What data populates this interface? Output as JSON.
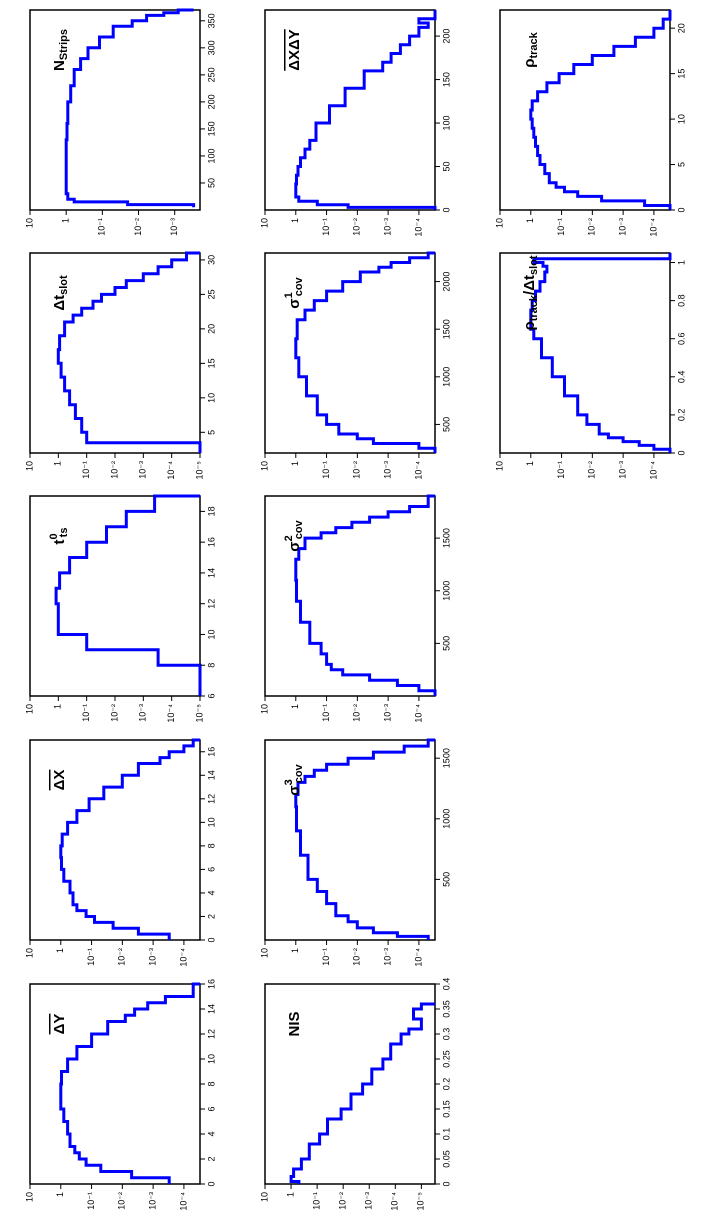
{
  "chart_data": [
    {
      "id": "p1",
      "type": "histogram",
      "label": {
        "main": "N",
        "sub": "Strips"
      },
      "xlim": [
        0,
        370
      ],
      "ylog": true,
      "ylim": [
        0.0002,
        10
      ],
      "xticks": [
        "50",
        "100",
        "150",
        "200",
        "250",
        "300",
        "350"
      ],
      "yticks": [
        "10",
        "1",
        "10⁻¹",
        "10⁻²",
        "10⁻³"
      ],
      "series": {
        "x": [
          5,
          10,
          15,
          20,
          30,
          40,
          50,
          70,
          100,
          130,
          160,
          200,
          230,
          260,
          280,
          300,
          320,
          340,
          350,
          360,
          365,
          370
        ],
        "y": [
          0.0003,
          0.02,
          0.6,
          0.9,
          1.0,
          1.0,
          1.0,
          1.0,
          1.0,
          0.95,
          0.9,
          0.75,
          0.6,
          0.4,
          0.25,
          0.12,
          0.05,
          0.015,
          0.006,
          0.002,
          0.0008,
          0.0003
        ]
      }
    },
    {
      "id": "p2",
      "type": "histogram",
      "label": {
        "main": "Δt",
        "sub": "slot"
      },
      "xlim": [
        2,
        31
      ],
      "ylog": true,
      "ylim": [
        1e-05,
        10
      ],
      "xticks": [
        "5",
        "10",
        "15",
        "20",
        "25",
        "30"
      ],
      "yticks": [
        "10",
        "1",
        "10⁻¹",
        "10⁻²",
        "10⁻³",
        "10⁻⁴",
        "10⁻⁵"
      ],
      "series": {
        "x": [
          2,
          3,
          3.5,
          5,
          7,
          9,
          11,
          13,
          15,
          17,
          19,
          21,
          22,
          23,
          24,
          25,
          26,
          27,
          28,
          29,
          30,
          31
        ],
        "y": [
          1e-05,
          1e-05,
          0.1,
          0.15,
          0.25,
          0.4,
          0.6,
          0.8,
          1.0,
          0.9,
          0.6,
          0.3,
          0.15,
          0.06,
          0.03,
          0.01,
          0.004,
          0.001,
          0.0003,
          0.0001,
          3e-05,
          1e-05
        ]
      }
    },
    {
      "id": "p3",
      "type": "histogram",
      "label": {
        "main": "t",
        "sup": "0",
        "sub": "ts"
      },
      "xlim": [
        6,
        19
      ],
      "ylog": true,
      "ylim": [
        1e-05,
        10
      ],
      "xticks": [
        "6",
        "8",
        "10",
        "12",
        "14",
        "16",
        "18"
      ],
      "yticks": [
        "10",
        "1",
        "10⁻¹",
        "10⁻²",
        "10⁻³",
        "10⁻⁴",
        "10⁻⁵"
      ],
      "series": {
        "x": [
          6,
          7,
          8,
          9,
          10,
          11,
          12,
          13,
          14,
          15,
          16,
          17,
          18,
          19
        ],
        "y": [
          1e-05,
          1e-05,
          0.0003,
          0.1,
          1.0,
          1.0,
          1.2,
          0.9,
          0.4,
          0.1,
          0.02,
          0.004,
          0.0004,
          1e-05
        ]
      }
    },
    {
      "id": "p4",
      "type": "histogram",
      "label": {
        "main": "ΔX",
        "overline": true
      },
      "xlim": [
        0,
        17
      ],
      "ylog": true,
      "ylim": [
        3e-05,
        10
      ],
      "xticks": [
        "0",
        "2",
        "4",
        "6",
        "8",
        "10",
        "12",
        "14",
        "16"
      ],
      "yticks": [
        "10",
        "1",
        "10⁻¹",
        "10⁻²",
        "10⁻³",
        "10⁻⁴"
      ],
      "series": {
        "x": [
          0,
          0.5,
          1,
          1.5,
          2,
          2.5,
          3,
          4,
          5,
          6,
          7,
          8,
          9,
          10,
          11,
          12,
          13,
          14,
          15,
          15.5,
          16,
          16.5,
          17
        ],
        "y": [
          0.0003,
          0.003,
          0.02,
          0.08,
          0.15,
          0.3,
          0.4,
          0.5,
          0.8,
          0.95,
          1.0,
          0.9,
          0.6,
          0.3,
          0.12,
          0.04,
          0.01,
          0.003,
          0.0006,
          0.0003,
          0.0001,
          5e-05,
          3e-05
        ]
      }
    },
    {
      "id": "p5",
      "type": "histogram",
      "label": {
        "main": "ΔY",
        "overline": true
      },
      "xlim": [
        0,
        16
      ],
      "ylog": true,
      "ylim": [
        3e-05,
        10
      ],
      "xticks": [
        "0",
        "2",
        "4",
        "6",
        "8",
        "10",
        "12",
        "14",
        "16"
      ],
      "yticks": [
        "10",
        "1",
        "10⁻¹",
        "10⁻²",
        "10⁻³",
        "10⁻⁴"
      ],
      "series": {
        "x": [
          0,
          0.5,
          1,
          1.5,
          2,
          2.5,
          3,
          4,
          5,
          6,
          7,
          8,
          9,
          10,
          11,
          12,
          13,
          13.5,
          14,
          14.5,
          15,
          16
        ],
        "y": [
          0.0003,
          0.005,
          0.05,
          0.15,
          0.25,
          0.35,
          0.5,
          0.6,
          0.8,
          1.0,
          1.0,
          0.95,
          0.6,
          0.3,
          0.1,
          0.03,
          0.008,
          0.004,
          0.0015,
          0.0004,
          5e-05,
          3e-05
        ]
      }
    },
    {
      "id": "p6",
      "type": "histogram",
      "label": {
        "main": "ΔXΔY",
        "overline": true
      },
      "xlim": [
        0,
        230
      ],
      "ylog": true,
      "ylim": [
        3e-05,
        10
      ],
      "xticks": [
        "0",
        "50",
        "100",
        "150",
        "200"
      ],
      "yticks": [
        "10",
        "1",
        "10⁻¹",
        "10⁻²",
        "10⁻³",
        "10⁻⁴"
      ],
      "series": {
        "x": [
          0,
          3,
          6,
          10,
          15,
          20,
          30,
          40,
          50,
          60,
          70,
          80,
          100,
          120,
          140,
          160,
          170,
          180,
          190,
          200,
          210,
          215,
          220,
          230
        ],
        "y": [
          3e-05,
          0.02,
          0.2,
          0.8,
          1.0,
          1.0,
          0.95,
          0.85,
          0.7,
          0.5,
          0.35,
          0.22,
          0.08,
          0.025,
          0.006,
          0.0015,
          0.0008,
          0.0004,
          0.0002,
          0.0001,
          5e-05,
          0.0001,
          3e-05,
          3e-05
        ]
      }
    },
    {
      "id": "p7",
      "type": "histogram",
      "label": {
        "main": "σ",
        "sup": "1",
        "sub": "cov"
      },
      "xlim": [
        200,
        2300
      ],
      "ylog": true,
      "ylim": [
        3e-05,
        10
      ],
      "xticks": [
        "500",
        "1000",
        "1500",
        "2000"
      ],
      "yticks": [
        "10",
        "1",
        "10⁻¹",
        "10⁻²",
        "10⁻³",
        "10⁻⁴"
      ],
      "series": {
        "x": [
          200,
          250,
          300,
          350,
          400,
          500,
          600,
          800,
          1000,
          1200,
          1400,
          1600,
          1700,
          1800,
          1900,
          2000,
          2100,
          2150,
          2200,
          2250,
          2300
        ],
        "y": [
          3e-05,
          0.0001,
          0.003,
          0.01,
          0.04,
          0.1,
          0.2,
          0.45,
          0.8,
          1.0,
          0.9,
          0.5,
          0.25,
          0.1,
          0.03,
          0.008,
          0.002,
          0.0008,
          0.0002,
          5e-05,
          3e-05
        ]
      }
    },
    {
      "id": "p8",
      "type": "histogram",
      "label": {
        "main": "σ",
        "sup": "2",
        "sub": "cov"
      },
      "xlim": [
        0,
        1900
      ],
      "ylog": true,
      "ylim": [
        3e-05,
        10
      ],
      "xticks": [
        "500",
        "1000",
        "1500"
      ],
      "yticks": [
        "10",
        "1",
        "10⁻¹",
        "10⁻²",
        "10⁻³",
        "10⁻⁴"
      ],
      "series": {
        "x": [
          0,
          50,
          100,
          150,
          200,
          250,
          300,
          400,
          500,
          700,
          900,
          1100,
          1300,
          1400,
          1500,
          1550,
          1600,
          1650,
          1700,
          1750,
          1800,
          1900
        ],
        "y": [
          3e-05,
          0.0001,
          0.0005,
          0.004,
          0.03,
          0.07,
          0.1,
          0.15,
          0.35,
          0.7,
          0.95,
          1.0,
          0.8,
          0.5,
          0.15,
          0.05,
          0.015,
          0.004,
          0.001,
          0.0002,
          5e-05,
          3e-05
        ]
      }
    },
    {
      "id": "p9",
      "type": "histogram",
      "label": {
        "main": "σ",
        "sup": "3",
        "sub": "cov"
      },
      "xlim": [
        0,
        1650
      ],
      "ylog": true,
      "ylim": [
        3e-05,
        10
      ],
      "xticks": [
        "500",
        "1000",
        "1500"
      ],
      "yticks": [
        "10",
        "1",
        "10⁻¹",
        "10⁻²",
        "10⁻³",
        "10⁻⁴"
      ],
      "series": {
        "x": [
          0,
          30,
          60,
          100,
          150,
          200,
          300,
          400,
          500,
          700,
          900,
          1100,
          1200,
          1300,
          1350,
          1400,
          1450,
          1500,
          1550,
          1600,
          1650
        ],
        "y": [
          5e-05,
          0.0005,
          0.003,
          0.01,
          0.02,
          0.05,
          0.1,
          0.2,
          0.4,
          0.7,
          0.95,
          1.0,
          0.85,
          0.5,
          0.25,
          0.1,
          0.02,
          0.003,
          0.0003,
          5e-05,
          3e-05
        ]
      }
    },
    {
      "id": "p10",
      "type": "histogram",
      "label": {
        "main": "NIS"
      },
      "xlim": [
        0,
        0.4
      ],
      "ylog": true,
      "ylim": [
        3e-06,
        10
      ],
      "xticks": [
        "0",
        "0.05",
        "0.1",
        "0.15",
        "0.2",
        "0.25",
        "0.3",
        "0.35",
        "0.4"
      ],
      "yticks": [
        "10",
        "1",
        "10⁻¹",
        "10⁻²",
        "10⁻³",
        "10⁻⁴",
        "10⁻⁵"
      ],
      "series": {
        "x": [
          0,
          0.005,
          0.015,
          0.03,
          0.05,
          0.08,
          0.1,
          0.13,
          0.15,
          0.18,
          0.2,
          0.23,
          0.25,
          0.28,
          0.3,
          0.31,
          0.33,
          0.35,
          0.36
        ],
        "y": [
          0.5,
          1.0,
          0.8,
          0.4,
          0.2,
          0.08,
          0.04,
          0.012,
          0.005,
          0.0018,
          0.0008,
          0.0003,
          0.00015,
          6e-05,
          3e-05,
          1e-05,
          2e-05,
          1e-05,
          3e-06
        ]
      }
    },
    {
      "id": "p11",
      "type": "histogram",
      "label": {
        "main": "ρ",
        "sub": "track"
      },
      "xlim": [
        0,
        22
      ],
      "ylog": true,
      "ylim": [
        3e-05,
        10
      ],
      "xticks": [
        "0",
        "5",
        "10",
        "15",
        "20"
      ],
      "yticks": [
        "10",
        "1",
        "10⁻¹",
        "10⁻²",
        "10⁻³",
        "10⁻⁴"
      ],
      "series": {
        "x": [
          0,
          0.5,
          1,
          1.5,
          2,
          2.5,
          3,
          4,
          5,
          6,
          7,
          8,
          9,
          10,
          11,
          12,
          13,
          14,
          15,
          16,
          17,
          18,
          19,
          20,
          21,
          22
        ],
        "y": [
          3e-05,
          0.0002,
          0.005,
          0.03,
          0.08,
          0.15,
          0.25,
          0.35,
          0.5,
          0.6,
          0.7,
          0.8,
          0.9,
          1.0,
          0.9,
          0.6,
          0.3,
          0.12,
          0.04,
          0.01,
          0.002,
          0.0004,
          0.0001,
          5e-05,
          3e-05,
          3e-05
        ]
      }
    },
    {
      "id": "p12",
      "type": "histogram",
      "label": {
        "main": "ρ",
        "sub": "track",
        "tail": "/Δt",
        "sub2": "slot"
      },
      "xlim": [
        0,
        1.05
      ],
      "ylog": true,
      "ylim": [
        3e-05,
        10
      ],
      "xticks": [
        "0",
        "0.2",
        "0.4",
        "0.6",
        "0.8",
        "1"
      ],
      "yticks": [
        "10",
        "1",
        "10⁻¹",
        "10⁻²",
        "10⁻³",
        "10⁻⁴"
      ],
      "series": {
        "x": [
          0,
          0.02,
          0.04,
          0.06,
          0.08,
          0.1,
          0.15,
          0.2,
          0.3,
          0.4,
          0.5,
          0.6,
          0.65,
          0.7,
          0.75,
          0.8,
          0.85,
          0.9,
          0.95,
          0.98,
          1.0,
          1.02,
          1.05
        ],
        "y": [
          3e-05,
          0.0001,
          0.0003,
          0.001,
          0.003,
          0.006,
          0.015,
          0.03,
          0.08,
          0.2,
          0.45,
          0.8,
          1.0,
          1.0,
          0.9,
          0.7,
          0.5,
          0.35,
          0.3,
          0.4,
          0.8,
          3e-05,
          3e-05
        ]
      }
    }
  ]
}
